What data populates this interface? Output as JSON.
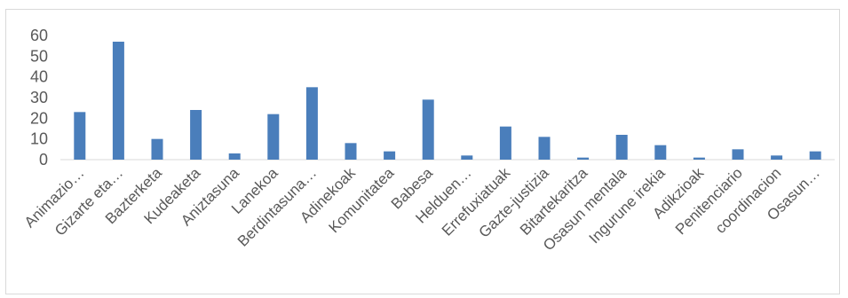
{
  "chart_data": {
    "type": "bar",
    "categories": [
      "Animazio…",
      "Gizarte eta…",
      "Bazterketa",
      "Kudeaketa",
      "Aniztasuna",
      "Lanekoa",
      "Berdintasuna…",
      "Adinekoak",
      "Komunitatea",
      "Babesa",
      "Helduen…",
      "Errefuxiatuak",
      "Gazte-justizia",
      "Bitartekaritza",
      "Osasun mentala",
      "Ingurune irekia",
      "Adikzioak",
      "Penitenciario",
      "coordinacion",
      "Osasun…"
    ],
    "values": [
      23,
      57,
      10,
      24,
      3,
      22,
      35,
      8,
      4,
      29,
      2,
      16,
      11,
      1,
      12,
      7,
      1,
      5,
      2,
      4
    ],
    "ylim": [
      0,
      60
    ],
    "yticks": [
      0,
      10,
      20,
      30,
      40,
      50,
      60
    ],
    "grid": false,
    "legend": "none",
    "bar_color": "#4a7ebb"
  }
}
